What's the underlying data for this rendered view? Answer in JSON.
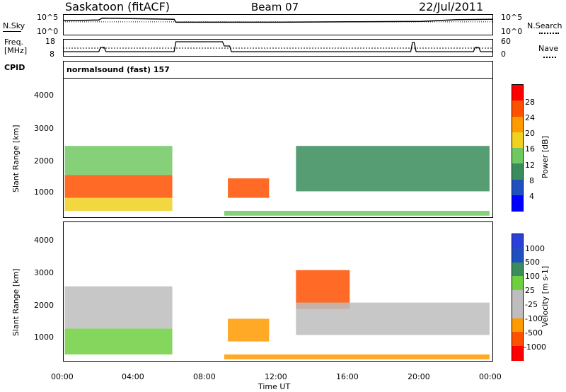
{
  "header": {
    "title": "Saskatoon (fitACF)",
    "beam": "Beam 07",
    "date": "22/Jul/2011"
  },
  "noise_panel": {
    "left_label": "N.Sky",
    "left_ticks": [
      "10^5",
      "10^0"
    ],
    "right_ticks": [
      "10^5",
      "10^0"
    ],
    "right_label": "N.Search"
  },
  "freq_panel": {
    "left_label_1": "Freq.",
    "left_label_2": "[MHz]",
    "left_ticks": [
      "18",
      "8"
    ],
    "right_ticks": [
      "60",
      "0"
    ],
    "right_label": "Nave"
  },
  "cpid": {
    "label": "CPID",
    "value": "normalsound (fast) 157"
  },
  "colors": {
    "power": [
      "#0000ff",
      "#2050c0",
      "#3a8c5c",
      "#70c860",
      "#f0d020",
      "#ff9a00",
      "#ff5000",
      "#ff0000"
    ],
    "velocity": [
      "#ff0000",
      "#ff5000",
      "#ff9a00",
      "#bdbdbd",
      "#bdbdbd",
      "#6fcf40",
      "#3a8c5c",
      "#2050c0",
      "#2a40d8"
    ]
  },
  "chart_data": [
    {
      "type": "line",
      "name": "noise",
      "xlabel": "Time UT",
      "ylabel": "N.Sky",
      "x_hours": [
        0,
        2,
        2.2,
        6.2,
        6.3,
        12,
        16,
        20,
        22,
        24
      ],
      "y_log": [
        3.6,
        3.8,
        4.3,
        4.0,
        3.2,
        3.2,
        3.3,
        3.4,
        3.9,
        4.0
      ]
    },
    {
      "type": "line",
      "name": "frequency",
      "ylabel": "Freq. [MHz]",
      "x_hours": [
        0,
        2,
        2.1,
        2.3,
        2.4,
        6.2,
        6.3,
        8.9,
        9.0,
        9.3,
        9.4,
        19.4,
        19.5,
        19.6,
        19.7,
        22.9,
        23.0,
        23.2,
        23.3,
        24
      ],
      "freq": [
        10.5,
        10.5,
        13.5,
        13.5,
        10.5,
        10.5,
        17.5,
        17.5,
        14.5,
        14.5,
        10.5,
        10.5,
        17,
        17,
        10.5,
        10.5,
        13.5,
        13.5,
        10.5,
        10.5
      ],
      "ylim": [
        8,
        18
      ]
    },
    {
      "type": "heatmap",
      "name": "power",
      "xlabel": "Time UT",
      "ylabel": "Slant Range [km]",
      "colorbar_label": "Power [dB]",
      "colorbar_ticks": [
        "28",
        "24",
        "20",
        "16",
        "12",
        "8",
        "4"
      ],
      "x_ticks": [
        "00:00",
        "04:00",
        "08:00",
        "12:00",
        "16:00",
        "20:00",
        "00:00"
      ],
      "y_ticks": [
        "4000",
        "3000",
        "2000",
        "1000"
      ],
      "xlim_hours": [
        0,
        24
      ],
      "ylim_km": [
        180,
        4500
      ],
      "bands": [
        {
          "t0": 0.1,
          "t1": 6.1,
          "r0": 400,
          "r1": 800,
          "level": 4
        },
        {
          "t0": 0.1,
          "t1": 6.1,
          "r0": 800,
          "r1": 1500,
          "level": 6
        },
        {
          "t0": 0.1,
          "t1": 6.1,
          "r0": 1500,
          "r1": 2400,
          "level": 3
        },
        {
          "t0": 9.2,
          "t1": 11.5,
          "r0": 800,
          "r1": 1400,
          "level": 6
        },
        {
          "t0": 13.0,
          "t1": 23.8,
          "r0": 1000,
          "r1": 2400,
          "level": 2
        },
        {
          "t0": 9.0,
          "t1": 23.8,
          "r0": 250,
          "r1": 400,
          "level": 3
        }
      ]
    },
    {
      "type": "heatmap",
      "name": "velocity",
      "xlabel": "Time UT",
      "ylabel": "Slant Range [km]",
      "colorbar_label": "Velocity [m s-1]",
      "colorbar_ticks": [
        "1000",
        "500",
        "100",
        "25",
        "-25",
        "-100",
        "-500",
        "-1000"
      ],
      "x_ticks": [
        "00:00",
        "04:00",
        "08:00",
        "12:00",
        "16:00",
        "20:00",
        "00:00"
      ],
      "y_ticks": [
        "4000",
        "3000",
        "2000",
        "1000"
      ],
      "xlim_hours": [
        0,
        24
      ],
      "ylim_km": [
        180,
        4500
      ],
      "bands": [
        {
          "t0": 0.1,
          "t1": 6.1,
          "r0": 400,
          "r1": 1200,
          "level": 5
        },
        {
          "t0": 0.1,
          "t1": 6.1,
          "r0": 1200,
          "r1": 2500,
          "level": 3
        },
        {
          "t0": 9.2,
          "t1": 11.5,
          "r0": 800,
          "r1": 1500,
          "level": 2
        },
        {
          "t0": 13.0,
          "t1": 16.0,
          "r0": 1800,
          "r1": 3000,
          "level": 1
        },
        {
          "t0": 13.0,
          "t1": 23.8,
          "r0": 1000,
          "r1": 2000,
          "level": 3
        },
        {
          "t0": 9.0,
          "t1": 23.8,
          "r0": 250,
          "r1": 400,
          "level": 2
        }
      ]
    }
  ],
  "time_axis_label": "Time UT"
}
